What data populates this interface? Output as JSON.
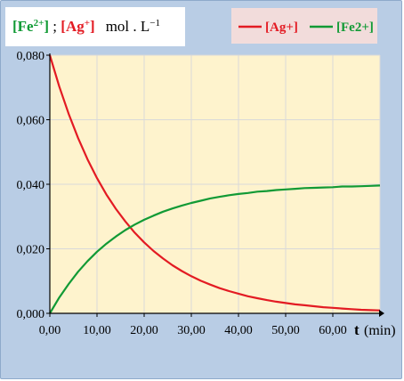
{
  "header": {
    "fe_label": "[Fe",
    "fe_charge": "2+",
    "separator": "] ; ",
    "ag_label": "[Ag",
    "ag_charge": "+",
    "close": "]",
    "unit": "mol . L",
    "unit_exp": "−1"
  },
  "chart_data": {
    "type": "line",
    "x_ticks": [
      "0,00",
      "10,00",
      "20,00",
      "30,00",
      "40,00",
      "50,00",
      "60,00"
    ],
    "y_ticks": [
      "0,000",
      "0,020",
      "0,040",
      "0,060",
      "0,080"
    ],
    "xlim": [
      0,
      70
    ],
    "ylim": [
      0,
      0.08
    ],
    "x_title": "t",
    "x_unit": "(min)",
    "grid": true,
    "legend_position": "top-right",
    "series": [
      {
        "name": "[Ag+]",
        "color": "#e31b23",
        "x": [
          0,
          2,
          4,
          6,
          8,
          10,
          12,
          14,
          16,
          18,
          20,
          22,
          24,
          26,
          28,
          30,
          32,
          34,
          36,
          38,
          40,
          42,
          44,
          46,
          48,
          50,
          52,
          54,
          56,
          58,
          60,
          62,
          64,
          66,
          68,
          70
        ],
        "y": [
          0.08,
          0.0703,
          0.0618,
          0.0543,
          0.0477,
          0.0419,
          0.0368,
          0.0324,
          0.0285,
          0.025,
          0.022,
          0.0193,
          0.017,
          0.0149,
          0.0131,
          0.0115,
          0.0101,
          0.0089,
          0.0078,
          0.0069,
          0.0061,
          0.0053,
          0.0047,
          0.0041,
          0.0036,
          0.0032,
          0.0028,
          0.0025,
          0.0022,
          0.0019,
          0.0017,
          0.0015,
          0.0013,
          0.0011,
          0.001,
          0.0009
        ]
      },
      {
        "name": "[Fe2+]",
        "color": "#119a35",
        "x": [
          0,
          2,
          4,
          6,
          8,
          10,
          12,
          14,
          16,
          18,
          20,
          22,
          24,
          26,
          28,
          30,
          32,
          34,
          36,
          38,
          40,
          42,
          44,
          46,
          48,
          50,
          52,
          54,
          56,
          58,
          60,
          62,
          64,
          66,
          68,
          70
        ],
        "y": [
          0.0,
          0.0049,
          0.0091,
          0.0129,
          0.0162,
          0.0191,
          0.0216,
          0.0238,
          0.0258,
          0.0275,
          0.029,
          0.0303,
          0.0315,
          0.0325,
          0.0334,
          0.0342,
          0.0349,
          0.0356,
          0.0361,
          0.0366,
          0.037,
          0.0373,
          0.0377,
          0.0379,
          0.0382,
          0.0384,
          0.0386,
          0.0388,
          0.0389,
          0.039,
          0.0391,
          0.0393,
          0.0393,
          0.0394,
          0.0395,
          0.0396
        ]
      }
    ]
  }
}
